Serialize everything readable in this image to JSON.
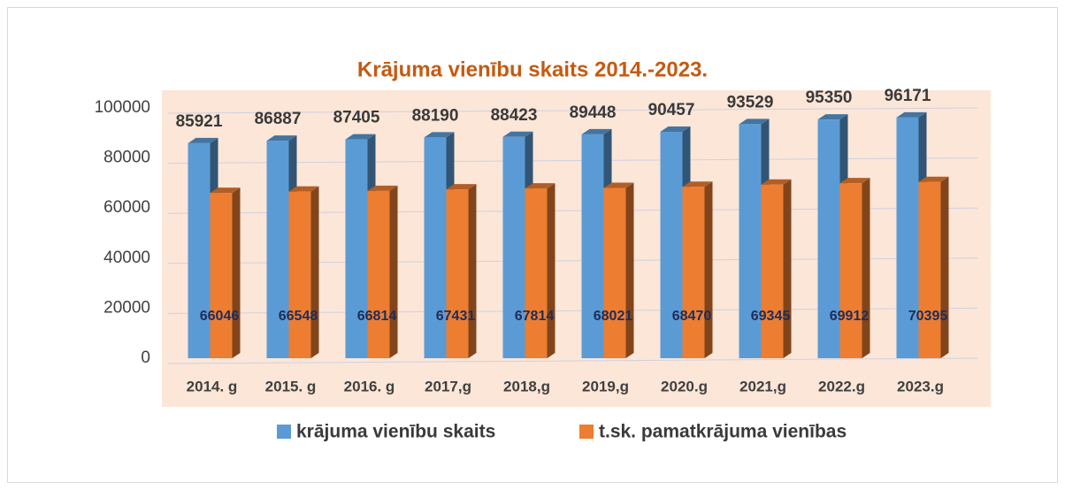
{
  "chart_data": {
    "type": "bar3d",
    "title": "Krājuma vienību skaits 2014.-2023.",
    "categories": [
      "2014. g",
      "2015. g",
      "2016. g",
      "2017,g",
      "2018,g",
      "2019,g",
      "2020.g",
      "2021,g",
      "2022.g",
      "2023.g"
    ],
    "series": [
      {
        "name": "krājuma vienību skaits",
        "color": "#5b9bd5",
        "values": [
          85921,
          86887,
          87405,
          88190,
          88423,
          89448,
          90457,
          93529,
          95350,
          96171
        ]
      },
      {
        "name": "t.sk. pamatkrājuma vienības",
        "color": "#ed7d31",
        "values": [
          66046,
          66548,
          66814,
          67431,
          67814,
          68021,
          68470,
          69345,
          69912,
          70395
        ]
      }
    ],
    "ylim": [
      0,
      100000
    ],
    "yticks": [
      0,
      20000,
      40000,
      60000,
      80000,
      100000
    ],
    "grid": true,
    "legend": "bottom"
  }
}
